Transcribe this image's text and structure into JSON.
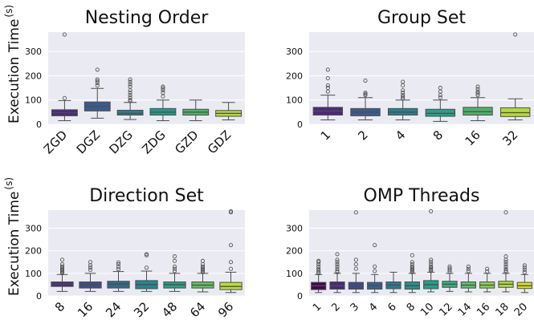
{
  "y_axis_label": "Execution Time",
  "y_axis_unit": "(s)",
  "chart_data": [
    {
      "type": "box",
      "title": "Nesting Order",
      "ylabel": "Execution Time",
      "yunit": "(s)",
      "ylim": [
        0,
        380
      ],
      "yticks": [
        0,
        100,
        200,
        300
      ],
      "grid": true,
      "categories": [
        "ZGD",
        "DGZ",
        "DZG",
        "ZDG",
        "GZD",
        "GDZ"
      ],
      "boxes": [
        {
          "min": 15,
          "q1": 35,
          "median": 48,
          "q3": 60,
          "max": 98,
          "outliers": [
            108,
            370
          ],
          "color": "#4c2a7a"
        },
        {
          "min": 25,
          "q1": 55,
          "median": 73,
          "q3": 92,
          "max": 148,
          "outliers": [
            160,
            170,
            178,
            185,
            225
          ],
          "color": "#3b5b8c"
        },
        {
          "min": 20,
          "q1": 38,
          "median": 45,
          "q3": 58,
          "max": 90,
          "outliers": [
            95,
            100,
            110,
            120,
            130,
            140,
            155,
            165,
            175,
            185
          ],
          "color": "#2e7d8e"
        },
        {
          "min": 15,
          "q1": 38,
          "median": 50,
          "q3": 65,
          "max": 100,
          "outliers": [
            115,
            130,
            140,
            148,
            155
          ],
          "color": "#229a8a"
        },
        {
          "min": 15,
          "q1": 38,
          "median": 50,
          "q3": 62,
          "max": 100,
          "outliers": [],
          "color": "#4ab36a"
        },
        {
          "min": 18,
          "q1": 33,
          "median": 45,
          "q3": 57,
          "max": 90,
          "outliers": [],
          "color": "#b3d93a"
        }
      ]
    },
    {
      "type": "box",
      "title": "Group Set",
      "ylim": [
        0,
        380
      ],
      "yticks": [
        0,
        100,
        200,
        300
      ],
      "grid": true,
      "categories": [
        "1",
        "2",
        "4",
        "8",
        "16",
        "32"
      ],
      "boxes": [
        {
          "min": 18,
          "q1": 38,
          "median": 55,
          "q3": 70,
          "max": 120,
          "outliers": [
            135,
            150,
            160,
            190,
            225
          ],
          "color": "#4c2a7a"
        },
        {
          "min": 18,
          "q1": 35,
          "median": 50,
          "q3": 65,
          "max": 110,
          "outliers": [
            120,
            125,
            130,
            180
          ],
          "color": "#3b5b8c"
        },
        {
          "min": 18,
          "q1": 38,
          "median": 50,
          "q3": 65,
          "max": 100,
          "outliers": [
            105,
            112,
            120,
            130,
            140,
            160,
            175
          ],
          "color": "#2b7f8e"
        },
        {
          "min": 12,
          "q1": 33,
          "median": 45,
          "q3": 62,
          "max": 100,
          "outliers": [
            110,
            120,
            135,
            150
          ],
          "color": "#23a08a"
        },
        {
          "min": 15,
          "q1": 38,
          "median": 52,
          "q3": 70,
          "max": 110,
          "outliers": [
            120,
            128,
            135,
            145,
            155
          ],
          "color": "#4ab36a"
        },
        {
          "min": 18,
          "q1": 32,
          "median": 48,
          "q3": 68,
          "max": 105,
          "outliers": [
            370
          ],
          "color": "#b3d93a"
        }
      ]
    },
    {
      "type": "box",
      "title": "Direction Set",
      "ylim": [
        0,
        380
      ],
      "yticks": [
        0,
        100,
        200,
        300
      ],
      "grid": true,
      "categories": [
        "8",
        "16",
        "24",
        "32",
        "48",
        "64",
        "96"
      ],
      "boxes": [
        {
          "min": 20,
          "q1": 42,
          "median": 53,
          "q3": 62,
          "max": 95,
          "outliers": [
            100,
            105,
            110,
            115,
            120,
            125,
            130,
            140,
            160
          ],
          "color": "#4c2a7a"
        },
        {
          "min": 20,
          "q1": 35,
          "median": 50,
          "q3": 62,
          "max": 100,
          "outliers": [
            115,
            125,
            135,
            150
          ],
          "color": "#404d8c"
        },
        {
          "min": 20,
          "q1": 35,
          "median": 52,
          "q3": 65,
          "max": 108,
          "outliers": [
            118,
            128,
            140,
            148
          ],
          "color": "#30698e"
        },
        {
          "min": 20,
          "q1": 32,
          "median": 50,
          "q3": 68,
          "max": 110,
          "outliers": [
            125,
            180,
            185
          ],
          "color": "#23878e"
        },
        {
          "min": 20,
          "q1": 35,
          "median": 50,
          "q3": 62,
          "max": 100,
          "outliers": [
            110,
            120,
            130,
            155,
            175
          ],
          "color": "#22a385"
        },
        {
          "min": 18,
          "q1": 35,
          "median": 48,
          "q3": 62,
          "max": 100,
          "outliers": [
            105,
            110,
            115,
            120,
            125,
            130,
            140,
            155
          ],
          "color": "#5ec25e"
        },
        {
          "min": 15,
          "q1": 28,
          "median": 42,
          "q3": 60,
          "max": 105,
          "outliers": [
            120,
            150,
            225,
            370,
            375
          ],
          "color": "#b8de38"
        }
      ]
    },
    {
      "type": "box",
      "title": "OMP Threads",
      "ylim": [
        0,
        380
      ],
      "yticks": [
        0,
        100,
        200,
        300
      ],
      "grid": true,
      "categories": [
        "1",
        "2",
        "3",
        "4",
        "6",
        "8",
        "10",
        "12",
        "14",
        "16",
        "18",
        "20"
      ],
      "boxes": [
        {
          "min": 15,
          "q1": 28,
          "median": 45,
          "q3": 60,
          "max": 95,
          "outliers": [
            100,
            105,
            112,
            120,
            130,
            140,
            150,
            155
          ],
          "color": "#44075a"
        },
        {
          "min": 15,
          "q1": 30,
          "median": 45,
          "q3": 62,
          "max": 100,
          "outliers": [
            105,
            110,
            120,
            130,
            140,
            150,
            160,
            185
          ],
          "color": "#472a79"
        },
        {
          "min": 15,
          "q1": 30,
          "median": 45,
          "q3": 60,
          "max": 100,
          "outliers": [
            120,
            140,
            160,
            370
          ],
          "color": "#3e4a89"
        },
        {
          "min": 15,
          "q1": 30,
          "median": 45,
          "q3": 60,
          "max": 95,
          "outliers": [
            110,
            130,
            225
          ],
          "color": "#33638d"
        },
        {
          "min": 15,
          "q1": 32,
          "median": 48,
          "q3": 62,
          "max": 105,
          "outliers": [],
          "color": "#2b7b8e"
        },
        {
          "min": 15,
          "q1": 30,
          "median": 45,
          "q3": 62,
          "max": 100,
          "outliers": [
            105,
            110,
            115,
            120,
            125,
            130,
            140,
            150,
            180
          ],
          "color": "#22928c"
        },
        {
          "min": 18,
          "q1": 32,
          "median": 50,
          "q3": 68,
          "max": 105,
          "outliers": [
            110,
            115,
            120,
            125,
            130,
            140,
            150,
            160,
            375
          ],
          "color": "#1fa187"
        },
        {
          "min": 20,
          "q1": 38,
          "median": 52,
          "q3": 65,
          "max": 100,
          "outliers": [
            108,
            115,
            122,
            130
          ],
          "color": "#2eb37c"
        },
        {
          "min": 18,
          "q1": 35,
          "median": 48,
          "q3": 62,
          "max": 100,
          "outliers": [
            110,
            120,
            130
          ],
          "color": "#52c569"
        },
        {
          "min": 18,
          "q1": 35,
          "median": 48,
          "q3": 62,
          "max": 100,
          "outliers": [
            108,
            120
          ],
          "color": "#86d549"
        },
        {
          "min": 18,
          "q1": 38,
          "median": 52,
          "q3": 65,
          "max": 100,
          "outliers": [
            105,
            112,
            120,
            130,
            140,
            150,
            160,
            175,
            370
          ],
          "color": "#addc30"
        },
        {
          "min": 15,
          "q1": 33,
          "median": 45,
          "q3": 60,
          "max": 95,
          "outliers": [
            105,
            115,
            125,
            135
          ],
          "color": "#d8e219"
        }
      ]
    }
  ]
}
